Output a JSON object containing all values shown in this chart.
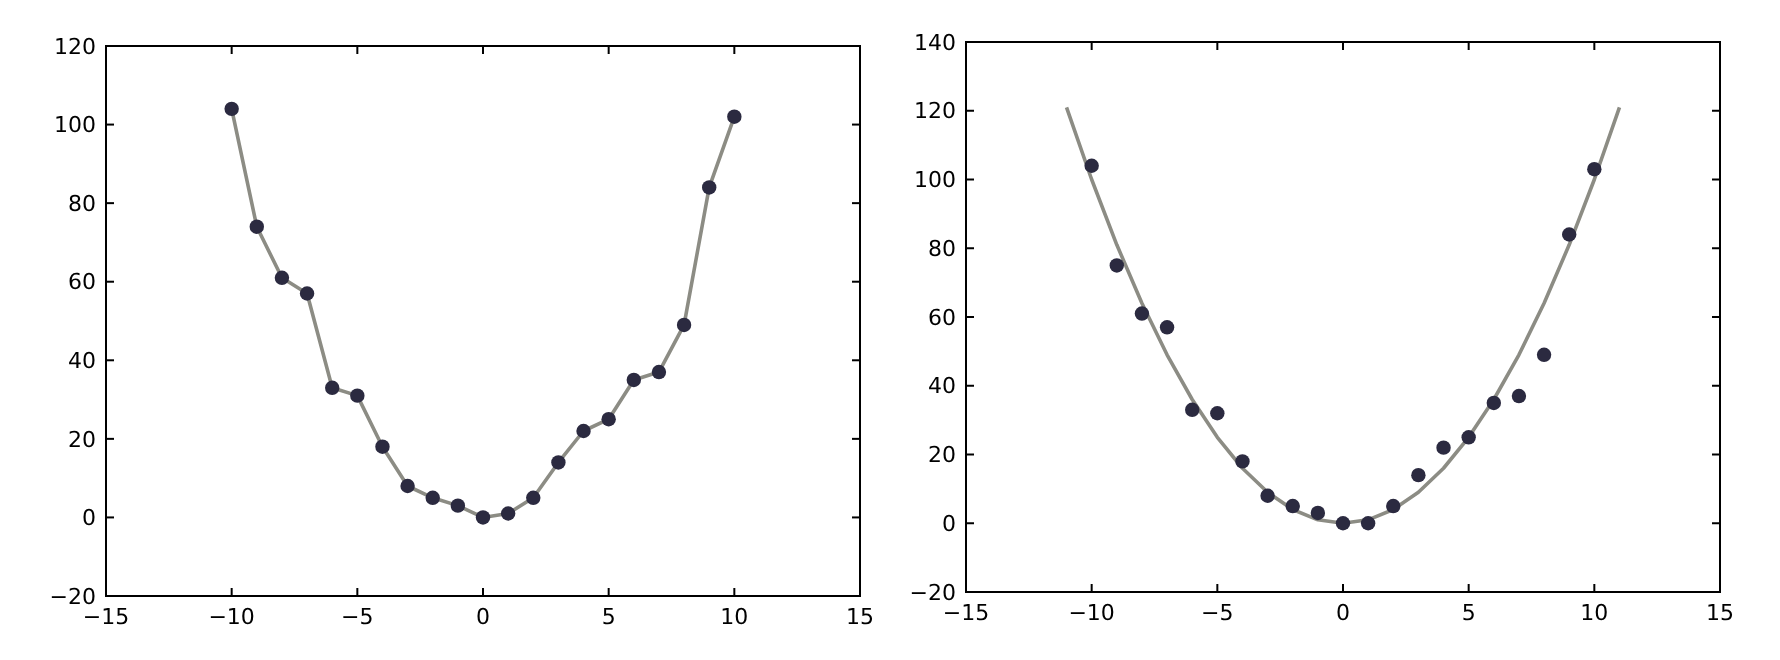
{
  "chart_data": [
    {
      "type": "line",
      "x": [
        -10,
        -9,
        -8,
        -7,
        -6,
        -5,
        -4,
        -3,
        -2,
        -1,
        0,
        1,
        2,
        3,
        4,
        5,
        6,
        7,
        8,
        9,
        10
      ],
      "xlim": [
        -15,
        15
      ],
      "xticks": [
        -15,
        -10,
        -5,
        0,
        5,
        10,
        15
      ],
      "ylim": [
        -20,
        120
      ],
      "yticks": [
        -20,
        0,
        20,
        40,
        60,
        80,
        100,
        120
      ],
      "grid": false,
      "series": [
        {
          "color": "#8c8c84",
          "marker": "none",
          "values": [
            104,
            74,
            61,
            57,
            33,
            31,
            18,
            8,
            5,
            3,
            0,
            1,
            5,
            14,
            22,
            25,
            35,
            37,
            49,
            84,
            102
          ]
        },
        {
          "type": "scatter",
          "color": "#2b2a40",
          "marker": "circle",
          "values": [
            104,
            74,
            61,
            57,
            33,
            31,
            18,
            8,
            5,
            3,
            0,
            1,
            5,
            14,
            22,
            25,
            35,
            37,
            49,
            84,
            102
          ]
        }
      ]
    },
    {
      "type": "scatter",
      "x": [
        -10,
        -9,
        -8,
        -7,
        -6,
        -5,
        -4,
        -3,
        -2,
        -1,
        0,
        1,
        2,
        3,
        4,
        5,
        6,
        7,
        8,
        9,
        10
      ],
      "xlim": [
        -15,
        15
      ],
      "xticks": [
        -15,
        -10,
        -5,
        0,
        5,
        10,
        15
      ],
      "ylim": [
        -20,
        140
      ],
      "yticks": [
        -20,
        0,
        20,
        40,
        60,
        80,
        100,
        120,
        140
      ],
      "grid": false,
      "series": [
        {
          "type": "line",
          "color": "#8c8c84",
          "marker": "none",
          "x": [
            -11,
            -10,
            -9,
            -8,
            -7,
            -6,
            -5,
            -4,
            -3,
            -2,
            -1,
            0,
            1,
            2,
            3,
            4,
            5,
            6,
            7,
            8,
            9,
            10,
            11
          ],
          "values": [
            121,
            100,
            81,
            64,
            49,
            36,
            25,
            16,
            9,
            4,
            1,
            0,
            1,
            4,
            9,
            16,
            25,
            36,
            49,
            64,
            81,
            100,
            121
          ]
        },
        {
          "color": "#2b2a40",
          "marker": "circle",
          "values": [
            104,
            75,
            61,
            57,
            33,
            32,
            18,
            8,
            5,
            3,
            0,
            0,
            5,
            14,
            22,
            25,
            35,
            37,
            49,
            84,
            103
          ]
        }
      ]
    }
  ]
}
